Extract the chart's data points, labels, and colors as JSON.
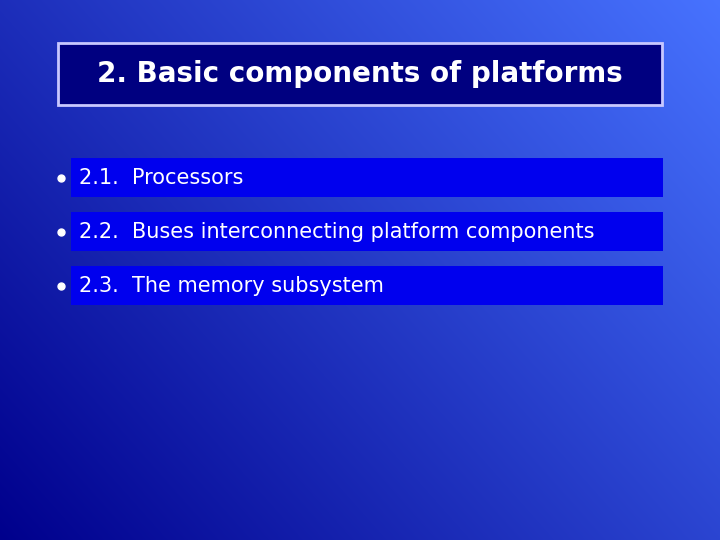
{
  "title": "2. Basic components of platforms",
  "bullet_items": [
    "2.1.  Processors",
    "2.2.  Buses interconnecting platform components",
    "2.3.  The memory subsystem"
  ],
  "title_box_bg": "#000080",
  "title_box_border": "#c8c8ff",
  "bullet_box_bg": "#0000ee",
  "text_color": "#ffffff",
  "title_fontsize": 20,
  "bullet_fontsize": 15,
  "figsize": [
    7.2,
    5.4
  ],
  "dpi": 100
}
